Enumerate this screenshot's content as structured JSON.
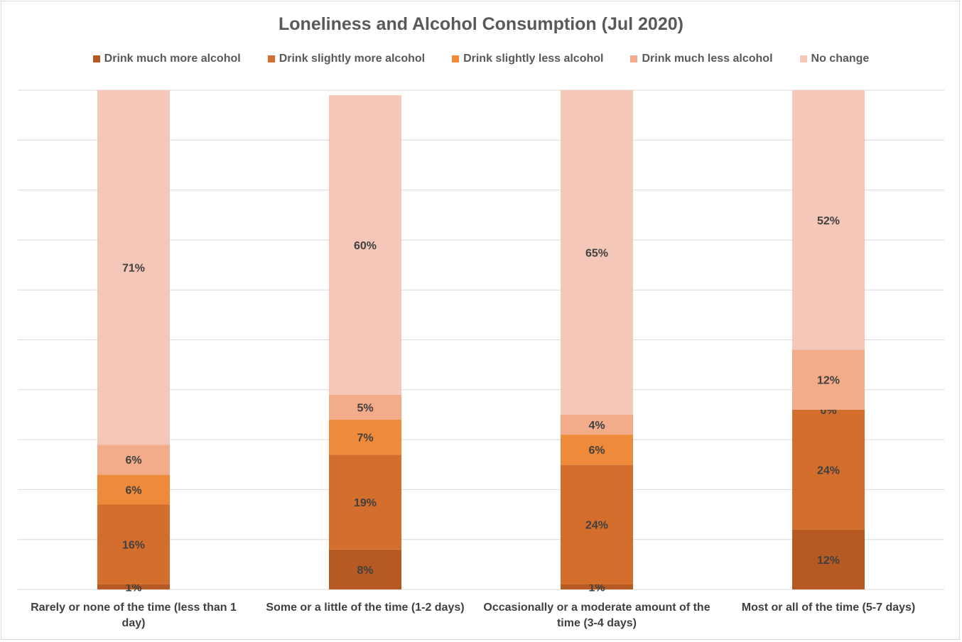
{
  "chart_data": {
    "type": "bar",
    "stacked": true,
    "title": "Loneliness and Alcohol Consumption (Jul 2020)",
    "xlabel": "",
    "ylabel": "",
    "ylim": [
      0,
      100
    ],
    "grid": true,
    "legend_position": "top",
    "categories": [
      "Rarely or none of the time (less than 1 day)",
      "Some or a little of the time (1-2 days)",
      "Occasionally or a moderate amount of the time (3-4 days)",
      "Most or all of the time (5-7 days)"
    ],
    "series": [
      {
        "name": "Drink much more alcohol",
        "color": "#b55a22",
        "values": [
          1,
          8,
          1,
          12
        ]
      },
      {
        "name": "Drink slightly more alcohol",
        "color": "#d46e2c",
        "values": [
          16,
          19,
          24,
          24
        ]
      },
      {
        "name": "Drink slightly less alcohol",
        "color": "#ef8a3a",
        "values": [
          6,
          7,
          6,
          0
        ]
      },
      {
        "name": "Drink much less alcohol",
        "color": "#f2ac8a",
        "values": [
          6,
          5,
          4,
          12
        ]
      },
      {
        "name": "No change",
        "color": "#f5c7b8",
        "values": [
          71,
          60,
          65,
          52
        ]
      }
    ]
  }
}
